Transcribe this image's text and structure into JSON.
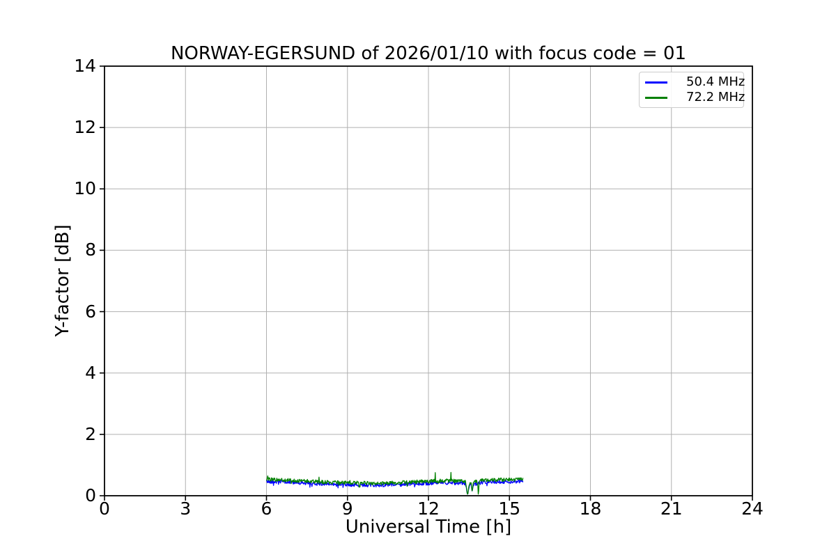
{
  "chart_data": {
    "type": "line",
    "title": "NORWAY-EGERSUND of 2026/01/10 with focus code = 01",
    "xlabel": "Universal Time [h]",
    "ylabel": "Y-factor [dB]",
    "xlim": [
      0,
      24
    ],
    "ylim": [
      0,
      14
    ],
    "xticks": [
      0,
      3,
      6,
      9,
      12,
      15,
      18,
      21,
      24
    ],
    "yticks": [
      0,
      2,
      4,
      6,
      8,
      10,
      12,
      14
    ],
    "grid": true,
    "legend_position": "upper right",
    "colors": {
      "grid": "#b0b0b0",
      "axis": "#000000",
      "background": "#ffffff",
      "legend_border": "#cccccc"
    },
    "data_time_range_h": [
      6.0,
      15.5
    ],
    "series": [
      {
        "name": "50.4 MHz",
        "color": "#0000ff",
        "noise_amplitude": 0.055,
        "x": [
          6.0,
          6.2,
          6.4,
          6.6,
          6.8,
          7.0,
          7.2,
          7.4,
          7.6,
          7.8,
          8.0,
          8.2,
          8.4,
          8.6,
          8.8,
          9.0,
          9.2,
          9.4,
          9.6,
          9.8,
          10.0,
          10.2,
          10.4,
          10.6,
          10.8,
          11.0,
          11.2,
          11.4,
          11.6,
          11.8,
          12.0,
          12.2,
          12.4,
          12.6,
          12.8,
          13.0,
          13.2,
          13.4,
          13.6,
          13.8,
          14.0,
          14.2,
          14.4,
          14.6,
          14.8,
          15.0,
          15.2,
          15.4,
          15.5
        ],
        "y": [
          0.46,
          0.46,
          0.45,
          0.45,
          0.44,
          0.43,
          0.42,
          0.41,
          0.4,
          0.39,
          0.38,
          0.37,
          0.37,
          0.36,
          0.36,
          0.36,
          0.35,
          0.35,
          0.35,
          0.34,
          0.34,
          0.34,
          0.35,
          0.35,
          0.36,
          0.36,
          0.37,
          0.38,
          0.39,
          0.4,
          0.4,
          0.41,
          0.41,
          0.42,
          0.42,
          0.41,
          0.41,
          0.4,
          0.38,
          0.39,
          0.43,
          0.44,
          0.45,
          0.45,
          0.45,
          0.45,
          0.45,
          0.46,
          0.46
        ]
      },
      {
        "name": "72.2 MHz",
        "color": "#008000",
        "noise_amplitude": 0.06,
        "up_spikes": {
          "from": 11.9,
          "to": 13.35,
          "probability": 0.05,
          "amplitude": 0.32
        },
        "x": [
          6.0,
          6.2,
          6.4,
          6.6,
          6.8,
          7.0,
          7.2,
          7.4,
          7.6,
          7.8,
          8.0,
          8.2,
          8.4,
          8.6,
          8.8,
          9.0,
          9.2,
          9.4,
          9.6,
          9.8,
          10.0,
          10.2,
          10.4,
          10.6,
          10.8,
          11.0,
          11.2,
          11.4,
          11.6,
          11.8,
          12.0,
          12.2,
          12.4,
          12.6,
          12.8,
          13.0,
          13.2,
          13.4,
          13.6,
          13.8,
          14.0,
          14.2,
          14.4,
          14.6,
          14.8,
          15.0,
          15.2,
          15.4,
          15.5
        ],
        "y": [
          0.53,
          0.53,
          0.52,
          0.52,
          0.51,
          0.5,
          0.49,
          0.48,
          0.47,
          0.46,
          0.45,
          0.44,
          0.44,
          0.43,
          0.43,
          0.43,
          0.42,
          0.42,
          0.42,
          0.41,
          0.41,
          0.41,
          0.42,
          0.42,
          0.43,
          0.43,
          0.44,
          0.45,
          0.46,
          0.47,
          0.47,
          0.48,
          0.48,
          0.49,
          0.49,
          0.48,
          0.48,
          0.47,
          0.45,
          0.46,
          0.5,
          0.51,
          0.52,
          0.52,
          0.52,
          0.52,
          0.52,
          0.53,
          0.53
        ]
      }
    ],
    "dips": [
      {
        "x": 13.45,
        "width": 0.05,
        "y_floor": 0.05,
        "series": "both"
      },
      {
        "x": 13.62,
        "width": 0.03,
        "y_floor": 0.15,
        "series": "both"
      },
      {
        "x": 13.85,
        "width": 0.02,
        "y_floor": 0.03,
        "series": "72.2 MHz"
      }
    ]
  }
}
